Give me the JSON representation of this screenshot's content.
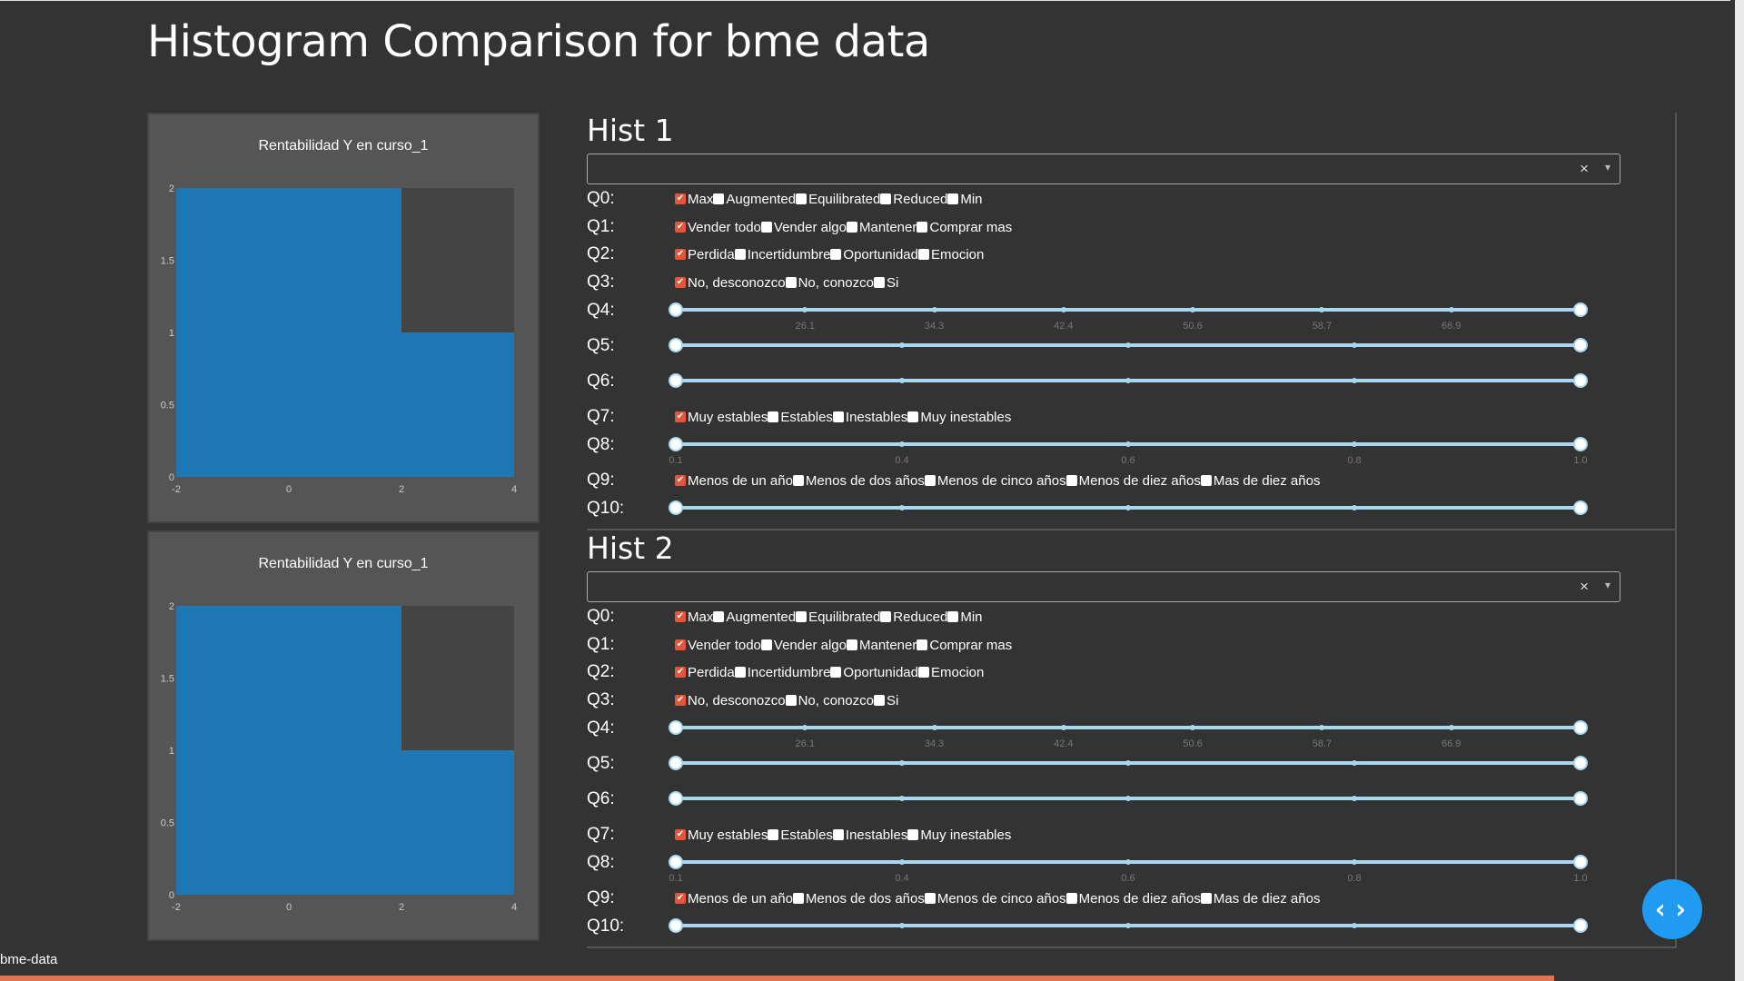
{
  "page": {
    "title": "Histogram Comparison for bme data",
    "footer": "bme-data",
    "nav_icon": "code-arrows-icon"
  },
  "colors": {
    "background": "#333333",
    "card": "#555555",
    "bar": "#1f77b4",
    "check_on": "#e4553a",
    "slider": "#a8d8ef",
    "nav": "#1f9bf1"
  },
  "chart_data": [
    {
      "type": "bar",
      "title": "Rentabilidad Y en curso_1",
      "bins": [
        {
          "x0": -2,
          "x1": 2,
          "count": 2
        },
        {
          "x0": 2,
          "x1": 4,
          "count": 1
        }
      ],
      "x": [
        -2,
        2
      ],
      "values": [
        2,
        1
      ],
      "xlim": [
        -2,
        4
      ],
      "ylim": [
        0,
        2
      ],
      "xticks": [
        "-2",
        "0",
        "2",
        "4"
      ],
      "yticks": [
        "0",
        "0.5",
        "1",
        "1.5",
        "2"
      ]
    },
    {
      "type": "bar",
      "title": "Rentabilidad Y en curso_1",
      "bins": [
        {
          "x0": -2,
          "x1": 2,
          "count": 2
        },
        {
          "x0": 2,
          "x1": 4,
          "count": 1
        }
      ],
      "x": [
        -2,
        2
      ],
      "values": [
        2,
        1
      ],
      "xlim": [
        -2,
        4
      ],
      "ylim": [
        0,
        2
      ],
      "xticks": [
        "-2",
        "0",
        "2",
        "4"
      ],
      "yticks": [
        "0",
        "0.5",
        "1",
        "1.5",
        "2"
      ]
    }
  ],
  "hists": [
    {
      "title": "Hist 1",
      "dropdown": {
        "value": "",
        "clear": "×",
        "arrow": "▾"
      },
      "questions": [
        {
          "label": "Q0:",
          "type": "checklist",
          "options": [
            {
              "label": "Max",
              "checked": true
            },
            {
              "label": "Augmented",
              "checked": false
            },
            {
              "label": "Equilibrated",
              "checked": false
            },
            {
              "label": "Reduced",
              "checked": false
            },
            {
              "label": "Min",
              "checked": false
            }
          ]
        },
        {
          "label": "Q1:",
          "type": "checklist",
          "options": [
            {
              "label": "Vender todo",
              "checked": true
            },
            {
              "label": "Vender algo",
              "checked": false
            },
            {
              "label": "Mantener",
              "checked": false
            },
            {
              "label": "Comprar mas",
              "checked": false
            }
          ]
        },
        {
          "label": "Q2:",
          "type": "checklist",
          "options": [
            {
              "label": "Perdida",
              "checked": true
            },
            {
              "label": "Incertidumbre",
              "checked": false
            },
            {
              "label": "Oportunidad",
              "checked": false
            },
            {
              "label": "Emocion",
              "checked": false
            }
          ]
        },
        {
          "label": "Q3:",
          "type": "checklist",
          "options": [
            {
              "label": "No, desconozco",
              "checked": true
            },
            {
              "label": "No, conozco",
              "checked": false
            },
            {
              "label": "Si",
              "checked": false
            }
          ]
        },
        {
          "label": "Q4:",
          "type": "slider",
          "steps": 7,
          "marks": [
            "26.1",
            "34.3",
            "42.4",
            "50.6",
            "58.7",
            "66.9"
          ],
          "range": [
            0,
            1
          ]
        },
        {
          "label": "Q5:",
          "type": "slider",
          "steps": 4,
          "marks": [],
          "range": [
            0,
            1
          ]
        },
        {
          "label": "Q6:",
          "type": "slider",
          "steps": 4,
          "marks": [],
          "range": [
            0,
            1
          ]
        },
        {
          "label": "Q7:",
          "type": "checklist",
          "options": [
            {
              "label": "Muy estables",
              "checked": true
            },
            {
              "label": "Estables",
              "checked": false
            },
            {
              "label": "Inestables",
              "checked": false
            },
            {
              "label": "Muy inestables",
              "checked": false
            }
          ]
        },
        {
          "label": "Q8:",
          "type": "slider",
          "steps": 4,
          "marks": [
            "0.1",
            "0.4",
            "0.6",
            "0.8",
            "1.0"
          ],
          "range": [
            0,
            1
          ]
        },
        {
          "label": "Q9:",
          "type": "checklist",
          "options": [
            {
              "label": "Menos de un año",
              "checked": true
            },
            {
              "label": "Menos de dos años",
              "checked": false
            },
            {
              "label": "Menos de cinco años",
              "checked": false
            },
            {
              "label": "Menos de diez años",
              "checked": false
            },
            {
              "label": "Mas de diez años",
              "checked": false
            }
          ]
        },
        {
          "label": "Q10:",
          "type": "slider",
          "steps": 4,
          "marks": [],
          "range": [
            0,
            1
          ]
        }
      ]
    },
    {
      "title": "Hist 2",
      "dropdown": {
        "value": "",
        "clear": "×",
        "arrow": "▾"
      },
      "questions": [
        {
          "label": "Q0:",
          "type": "checklist",
          "options": [
            {
              "label": "Max",
              "checked": true
            },
            {
              "label": "Augmented",
              "checked": false
            },
            {
              "label": "Equilibrated",
              "checked": false
            },
            {
              "label": "Reduced",
              "checked": false
            },
            {
              "label": "Min",
              "checked": false
            }
          ]
        },
        {
          "label": "Q1:",
          "type": "checklist",
          "options": [
            {
              "label": "Vender todo",
              "checked": true
            },
            {
              "label": "Vender algo",
              "checked": false
            },
            {
              "label": "Mantener",
              "checked": false
            },
            {
              "label": "Comprar mas",
              "checked": false
            }
          ]
        },
        {
          "label": "Q2:",
          "type": "checklist",
          "options": [
            {
              "label": "Perdida",
              "checked": true
            },
            {
              "label": "Incertidumbre",
              "checked": false
            },
            {
              "label": "Oportunidad",
              "checked": false
            },
            {
              "label": "Emocion",
              "checked": false
            }
          ]
        },
        {
          "label": "Q3:",
          "type": "checklist",
          "options": [
            {
              "label": "No, desconozco",
              "checked": true
            },
            {
              "label": "No, conozco",
              "checked": false
            },
            {
              "label": "Si",
              "checked": false
            }
          ]
        },
        {
          "label": "Q4:",
          "type": "slider",
          "steps": 7,
          "marks": [
            "26.1",
            "34.3",
            "42.4",
            "50.6",
            "58.7",
            "66.9"
          ],
          "range": [
            0,
            1
          ]
        },
        {
          "label": "Q5:",
          "type": "slider",
          "steps": 4,
          "marks": [],
          "range": [
            0,
            1
          ]
        },
        {
          "label": "Q6:",
          "type": "slider",
          "steps": 4,
          "marks": [],
          "range": [
            0,
            1
          ]
        },
        {
          "label": "Q7:",
          "type": "checklist",
          "options": [
            {
              "label": "Muy estables",
              "checked": true
            },
            {
              "label": "Estables",
              "checked": false
            },
            {
              "label": "Inestables",
              "checked": false
            },
            {
              "label": "Muy inestables",
              "checked": false
            }
          ]
        },
        {
          "label": "Q8:",
          "type": "slider",
          "steps": 4,
          "marks": [
            "0.1",
            "0.4",
            "0.6",
            "0.8",
            "1.0"
          ],
          "range": [
            0,
            1
          ]
        },
        {
          "label": "Q9:",
          "type": "checklist",
          "options": [
            {
              "label": "Menos de un año",
              "checked": true
            },
            {
              "label": "Menos de dos años",
              "checked": false
            },
            {
              "label": "Menos de cinco años",
              "checked": false
            },
            {
              "label": "Menos de diez años",
              "checked": false
            },
            {
              "label": "Mas de diez años",
              "checked": false
            }
          ]
        },
        {
          "label": "Q10:",
          "type": "slider",
          "steps": 4,
          "marks": [],
          "range": [
            0,
            1
          ]
        }
      ]
    }
  ]
}
